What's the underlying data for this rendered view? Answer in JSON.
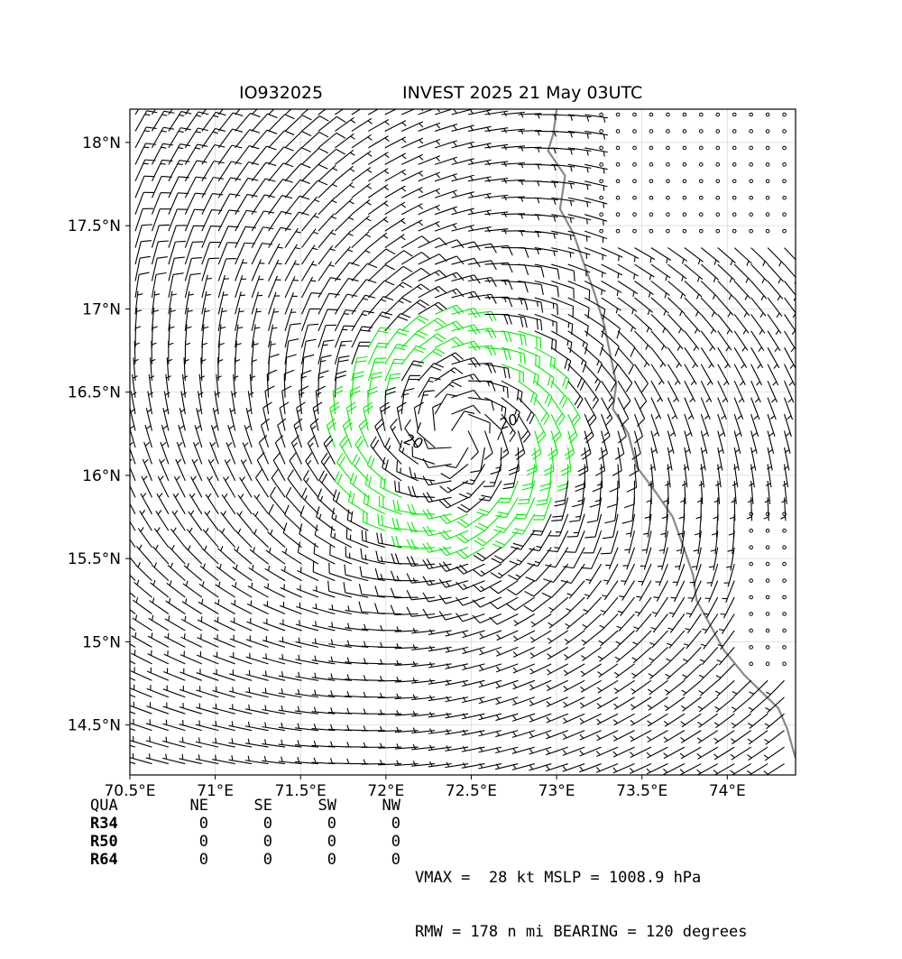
{
  "title_left": "IO932025",
  "title_right": "INVEST 2025 21 May 03UTC",
  "chart_data": {
    "type": "wind-barb map",
    "lon_range": [
      70.5,
      74.4
    ],
    "lat_range": [
      14.2,
      18.2
    ],
    "x_ticks": [
      "70.5°E",
      "71°E",
      "71.5°E",
      "72°E",
      "72.5°E",
      "73°E",
      "73.5°E",
      "74°E"
    ],
    "y_ticks": [
      "18°N",
      "17.5°N",
      "17°N",
      "16.5°N",
      "16°N",
      "15.5°N",
      "15°N",
      "14.5°N"
    ],
    "grid": true,
    "center": {
      "lon": 72.4,
      "lat": 16.25
    },
    "contour_labels": [
      "20",
      "20"
    ],
    "barb_colors": {
      "normal": "#000000",
      "above_20kt": "#00ee00",
      "coast": "#888888"
    }
  },
  "quadrants": {
    "header": [
      "QUA",
      "NE",
      "SE",
      "SW",
      "NW"
    ],
    "rows": [
      {
        "label": "R34",
        "values": [
          "0",
          "0",
          "0",
          "0"
        ]
      },
      {
        "label": "R50",
        "values": [
          "0",
          "0",
          "0",
          "0"
        ]
      },
      {
        "label": "R64",
        "values": [
          "0",
          "0",
          "0",
          "0"
        ]
      }
    ]
  },
  "stats": {
    "line1": "VMAX =  28 kt MSLP = 1008.9 hPa",
    "line2": "RMW = 178 n mi BEARING = 120 degrees"
  }
}
